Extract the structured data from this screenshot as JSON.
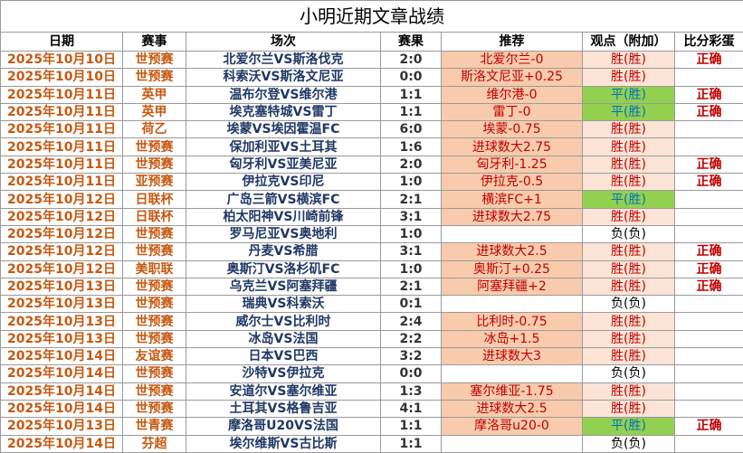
{
  "table": {
    "title": "小明近期文章战绩",
    "headers": [
      "日期",
      "赛事",
      "场次",
      "赛果",
      "推荐",
      "观点（附加）",
      "比分彩蛋"
    ],
    "rows": [
      {
        "date": "2025年10月10日",
        "league": "世预赛",
        "match": "北爱尔兰VS斯洛伐克",
        "score": "2:0",
        "tip": "北爱尔兰-0",
        "view": "胜(胜)",
        "view_color": "#fce4d6",
        "view_text_color": "#c00000",
        "egg": "正确"
      },
      {
        "date": "2025年10月10日",
        "league": "世预赛",
        "match": "科索沃VS斯洛文尼亚",
        "score": "0:0",
        "tip": "斯洛文尼亚+0.25",
        "view": "胜(胜)",
        "view_color": "#fce4d6",
        "view_text_color": "#c00000",
        "egg": null
      },
      {
        "date": "2025年10月11日",
        "league": "英甲",
        "match": "温布尔登VS维尔港",
        "score": "1:1",
        "tip": "维尔港-0",
        "view": "平(胜)",
        "view_color": "#92d050",
        "view_text_color": "#0070c0",
        "egg": "正确"
      },
      {
        "date": "2025年10月11日",
        "league": "英甲",
        "match": "埃克塞特城VS雷丁",
        "score": "1:1",
        "tip": "雷丁-0",
        "view": "平(胜)",
        "view_color": "#92d050",
        "view_text_color": "#0070c0",
        "egg": "正确"
      },
      {
        "date": "2025年10月11日",
        "league": "荷乙",
        "match": "埃蒙VS埃因霍温FC",
        "score": "6:0",
        "tip": "埃蒙-0.75",
        "view": "胜(胜)",
        "view_color": "#fce4d6",
        "view_text_color": "#c00000",
        "egg": null
      },
      {
        "date": "2025年10月11日",
        "league": "世预赛",
        "match": "保加利亚VS土耳其",
        "score": "1:6",
        "tip": "进球数大2.75",
        "view": "胜(胜)",
        "view_color": "#fce4d6",
        "view_text_color": "#c00000",
        "egg": null
      },
      {
        "date": "2025年10月11日",
        "league": "世预赛",
        "match": "匈牙利VS亚美尼亚",
        "score": "2:0",
        "tip": "匈牙利-1.25",
        "view": "胜(胜)",
        "view_color": "#fce4d6",
        "view_text_color": "#c00000",
        "egg": "正确"
      },
      {
        "date": "2025年10月11日",
        "league": "亚预赛",
        "match": "伊拉克VS印尼",
        "score": "1:0",
        "tip": "伊拉克-0.5",
        "view": "胜(胜)",
        "view_color": "#fce4d6",
        "view_text_color": "#c00000",
        "egg": "正确"
      },
      {
        "date": "2025年10月12日",
        "league": "日联杯",
        "match": "广岛三箭VS横滨FC",
        "score": "2:1",
        "tip": "横滨FC+1",
        "view": "平(胜)",
        "view_color": "#92d050",
        "view_text_color": "#0070c0",
        "egg": null
      },
      {
        "date": "2025年10月12日",
        "league": "日联杯",
        "match": "柏太阳神VS川崎前锋",
        "score": "3:1",
        "tip": "进球数大2.75",
        "view": "胜(胜)",
        "view_color": "#fce4d6",
        "view_text_color": "#c00000",
        "egg": null
      },
      {
        "date": "2025年10月12日",
        "league": "世预赛",
        "match": "罗马尼亚VS奥地利",
        "score": "1:0",
        "tip": null,
        "view": "负(负)",
        "view_color": "#ffffff",
        "view_text_color": "#000000",
        "egg": null
      },
      {
        "date": "2025年10月12日",
        "league": "世预赛",
        "match": "丹麦VS希腊",
        "score": "3:1",
        "tip": "进球数大2.5",
        "view": "胜(胜)",
        "view_color": "#fce4d6",
        "view_text_color": "#c00000",
        "egg": "正确"
      },
      {
        "date": "2025年10月12日",
        "league": "美职联",
        "match": "奥斯汀VS洛杉矶FC",
        "score": "1:0",
        "tip": "奥斯汀+0.25",
        "view": "胜(胜)",
        "view_color": "#fce4d6",
        "view_text_color": "#c00000",
        "egg": "正确"
      },
      {
        "date": "2025年10月13日",
        "league": "世预赛",
        "match": "乌克兰VS阿塞拜疆",
        "score": "2:1",
        "tip": "阿塞拜疆+2",
        "view": "胜(胜)",
        "view_color": "#fce4d6",
        "view_text_color": "#c00000",
        "egg": "正确"
      },
      {
        "date": "2025年10月13日",
        "league": "世预赛",
        "match": "瑞典VS科索沃",
        "score": "0:1",
        "tip": null,
        "view": "负(负)",
        "view_color": "#ffffff",
        "view_text_color": "#000000",
        "egg": null
      },
      {
        "date": "2025年10月13日",
        "league": "世预赛",
        "match": "威尔士VS比利时",
        "score": "2:4",
        "tip": "比利时-0.75",
        "view": "胜(胜)",
        "view_color": "#fce4d6",
        "view_text_color": "#c00000",
        "egg": null
      },
      {
        "date": "2025年10月13日",
        "league": "世预赛",
        "match": "冰岛VS法国",
        "score": "2:2",
        "tip": "冰岛+1.5",
        "view": "胜(胜)",
        "view_color": "#fce4d6",
        "view_text_color": "#c00000",
        "egg": null
      },
      {
        "date": "2025年10月14日",
        "league": "友谊赛",
        "match": "日本VS巴西",
        "score": "3:2",
        "tip": "进球数大3",
        "view": "胜(胜)",
        "view_color": "#fce4d6",
        "view_text_color": "#c00000",
        "egg": null
      },
      {
        "date": "2025年10月14日",
        "league": "世预赛",
        "match": "沙特VS伊拉克",
        "score": "0:0",
        "tip": null,
        "view": "负(负)",
        "view_color": "#ffffff",
        "view_text_color": "#000000",
        "egg": null
      },
      {
        "date": "2025年10月14日",
        "league": "世预赛",
        "match": "安道尔VS塞尔维亚",
        "score": "1:3",
        "tip": "塞尔维亚-1.75",
        "view": "胜(胜)",
        "view_color": "#fce4d6",
        "view_text_color": "#c00000",
        "egg": null
      },
      {
        "date": "2025年10月14日",
        "league": "世预赛",
        "match": "土耳其VS格鲁吉亚",
        "score": "4:1",
        "tip": "进球数大2.5",
        "view": "胜(胜)",
        "view_color": "#fce4d6",
        "view_text_color": "#c00000",
        "egg": null
      },
      {
        "date": "2025年10月13日",
        "league": "世青赛",
        "match": "摩洛哥U20VS法国",
        "score": "1:1",
        "tip": "摩洛哥u20-0",
        "view": "平(胜)",
        "view_color": "#92d050",
        "view_text_color": "#0070c0",
        "egg": "正确"
      },
      {
        "date": "2025年10月14日",
        "league": "芬超",
        "match": "埃尔维斯VS古比斯",
        "score": "1:1",
        "tip": null,
        "view": "负(负)",
        "view_color": "#ffffff",
        "view_text_color": "#000000",
        "egg": null
      }
    ]
  }
}
